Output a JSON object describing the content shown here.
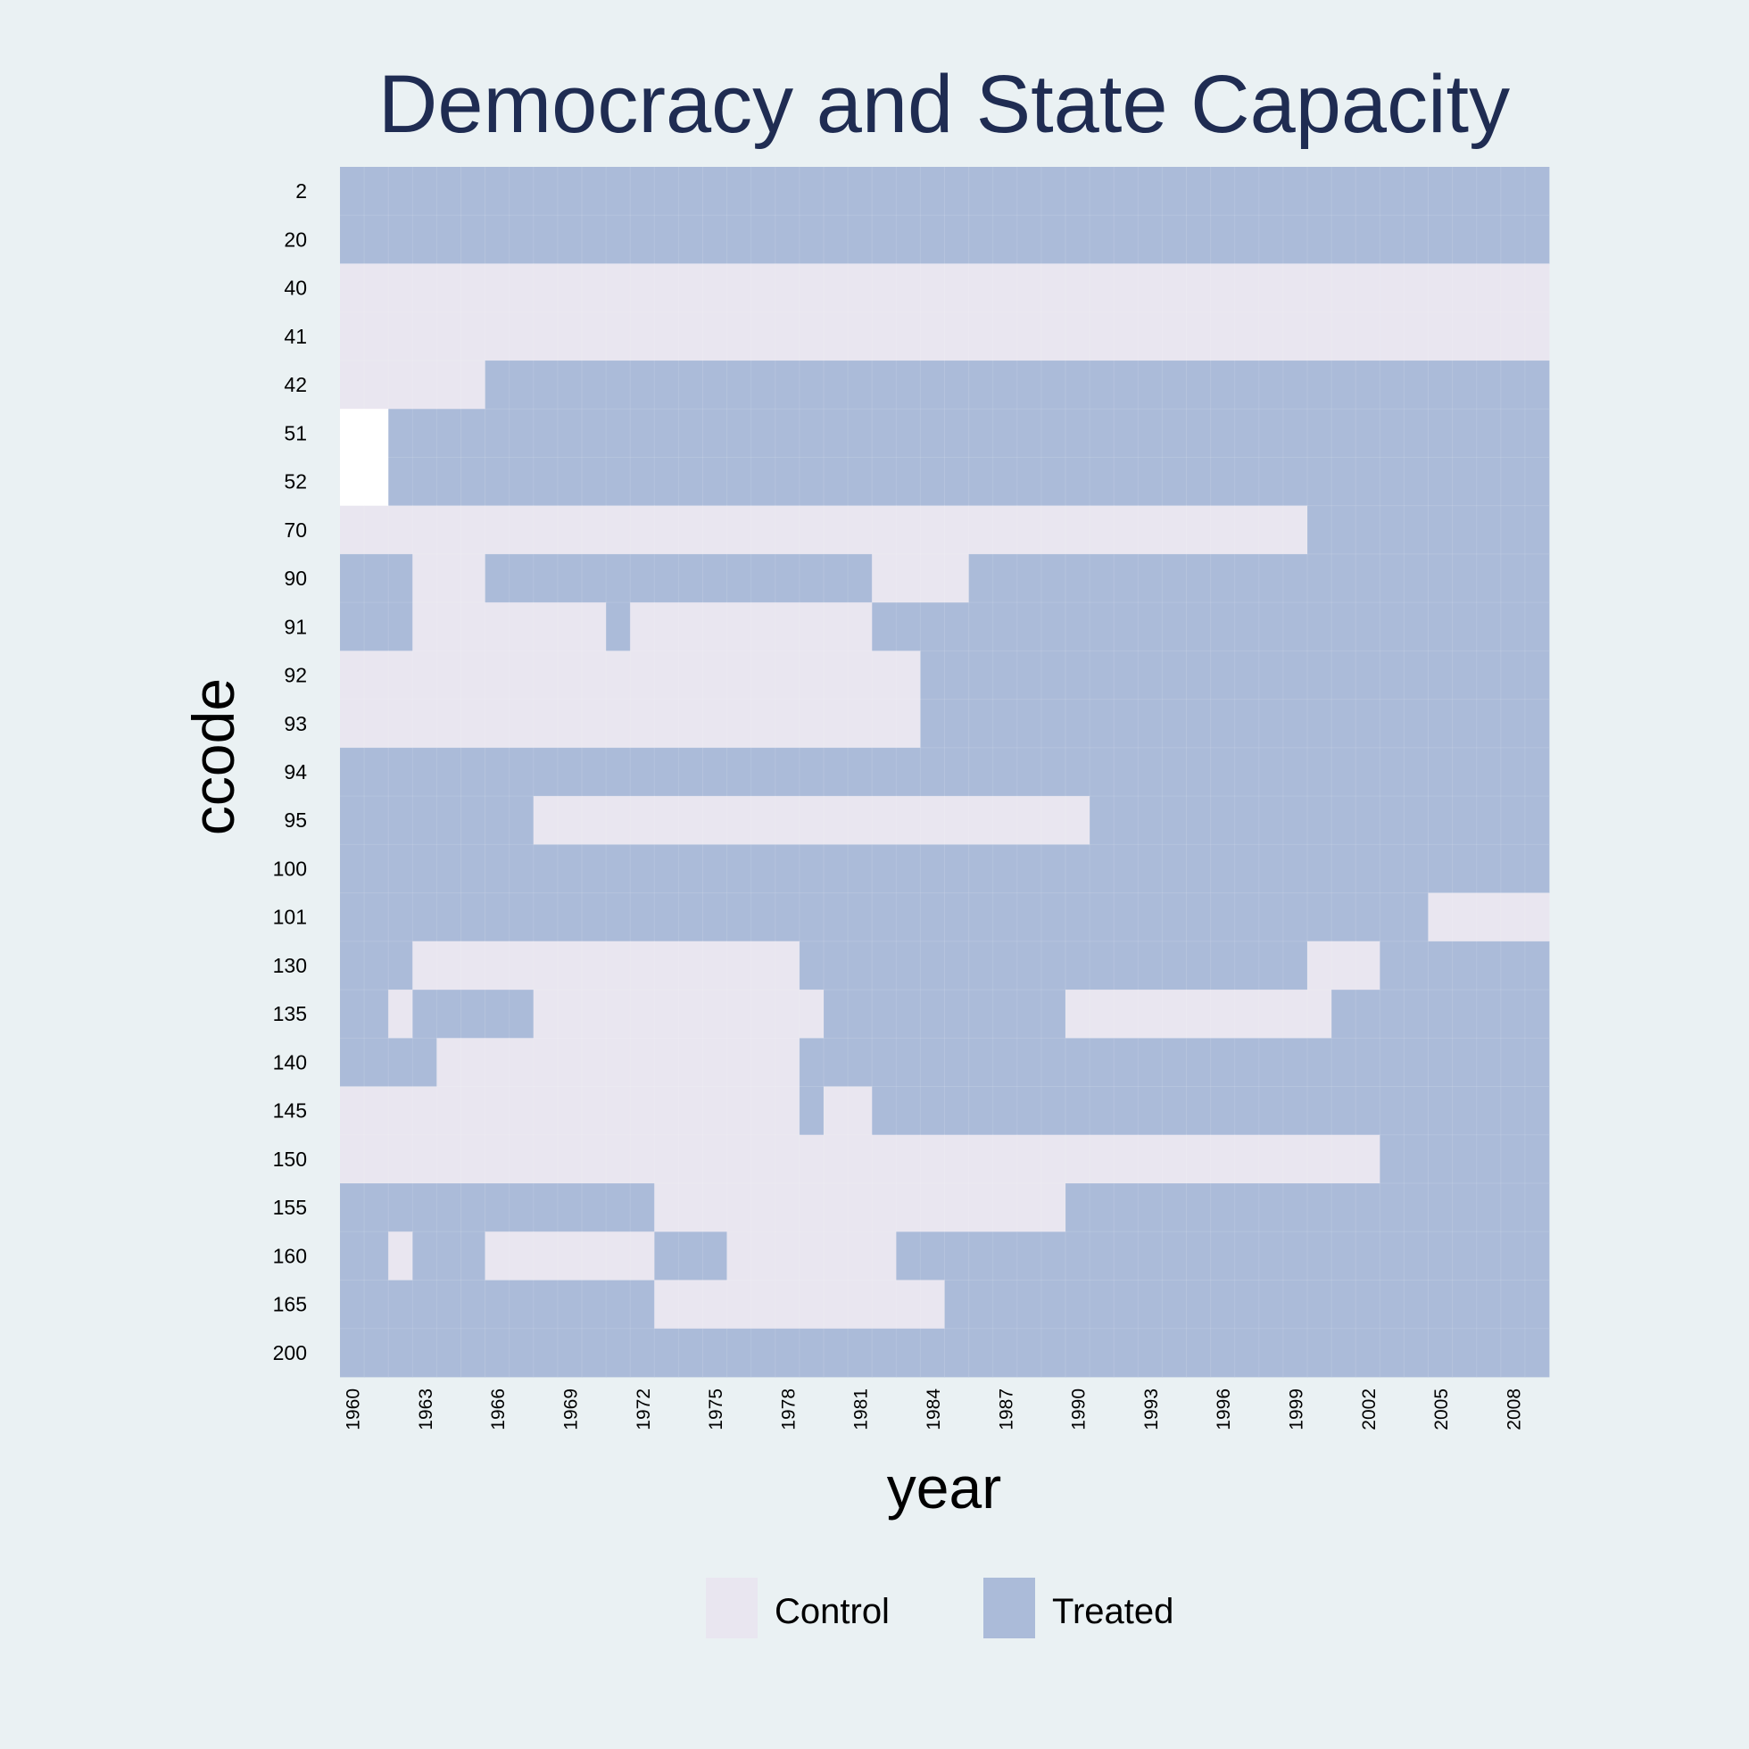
{
  "chart_data": {
    "type": "heatmap",
    "title": "Democracy and State Capacity",
    "xlabel": "year",
    "ylabel": "ccode",
    "years": [
      1960,
      1961,
      1962,
      1963,
      1964,
      1965,
      1966,
      1967,
      1968,
      1969,
      1970,
      1971,
      1972,
      1973,
      1974,
      1975,
      1976,
      1977,
      1978,
      1979,
      1980,
      1981,
      1982,
      1983,
      1984,
      1985,
      1986,
      1987,
      1988,
      1989,
      1990,
      1991,
      1992,
      1993,
      1994,
      1995,
      1996,
      1997,
      1998,
      1999,
      2000,
      2001,
      2002,
      2003,
      2004,
      2005,
      2006,
      2007,
      2008,
      2009
    ],
    "x_tick_labels": [
      "1960",
      "1963",
      "1966",
      "1969",
      "1972",
      "1975",
      "1978",
      "1981",
      "1984",
      "1987",
      "1990",
      "1993",
      "1996",
      "1999",
      "2002",
      "2005",
      "2008"
    ],
    "ccodes": [
      "2",
      "20",
      "40",
      "41",
      "42",
      "51",
      "52",
      "70",
      "90",
      "91",
      "92",
      "93",
      "94",
      "95",
      "100",
      "101",
      "130",
      "135",
      "140",
      "145",
      "150",
      "155",
      "160",
      "165",
      "200"
    ],
    "status_codes": {
      "0": "Missing",
      "1": "Control",
      "2": "Treated"
    },
    "colors": {
      "background": "#eaf1f3",
      "control": "#e9e6f0",
      "treated": "#abbbd9",
      "missing": "#ffffff",
      "title": "#1f2c52",
      "text": "#000000"
    },
    "runs": [
      [
        [
          2,
          50
        ]
      ],
      [
        [
          2,
          50
        ]
      ],
      [
        [
          1,
          50
        ]
      ],
      [
        [
          1,
          50
        ]
      ],
      [
        [
          1,
          6
        ],
        [
          2,
          44
        ]
      ],
      [
        [
          0,
          2
        ],
        [
          2,
          48
        ]
      ],
      [
        [
          0,
          2
        ],
        [
          2,
          48
        ]
      ],
      [
        [
          1,
          40
        ],
        [
          2,
          10
        ]
      ],
      [
        [
          2,
          3
        ],
        [
          1,
          3
        ],
        [
          2,
          16
        ],
        [
          1,
          4
        ],
        [
          2,
          24
        ]
      ],
      [
        [
          2,
          3
        ],
        [
          1,
          8
        ],
        [
          2,
          1
        ],
        [
          1,
          10
        ],
        [
          2,
          28
        ]
      ],
      [
        [
          1,
          24
        ],
        [
          2,
          26
        ]
      ],
      [
        [
          1,
          24
        ],
        [
          2,
          26
        ]
      ],
      [
        [
          2,
          50
        ]
      ],
      [
        [
          2,
          8
        ],
        [
          1,
          23
        ],
        [
          2,
          19
        ]
      ],
      [
        [
          2,
          50
        ]
      ],
      [
        [
          2,
          45
        ],
        [
          1,
          5
        ]
      ],
      [
        [
          2,
          3
        ],
        [
          1,
          16
        ],
        [
          2,
          21
        ],
        [
          1,
          3
        ],
        [
          2,
          7
        ]
      ],
      [
        [
          2,
          2
        ],
        [
          1,
          1
        ],
        [
          2,
          5
        ],
        [
          1,
          12
        ],
        [
          2,
          10
        ],
        [
          1,
          11
        ],
        [
          2,
          9
        ]
      ],
      [
        [
          2,
          4
        ],
        [
          1,
          15
        ],
        [
          2,
          31
        ]
      ],
      [
        [
          1,
          19
        ],
        [
          2,
          1
        ],
        [
          1,
          2
        ],
        [
          2,
          28
        ]
      ],
      [
        [
          1,
          43
        ],
        [
          2,
          7
        ]
      ],
      [
        [
          2,
          13
        ],
        [
          1,
          17
        ],
        [
          2,
          20
        ]
      ],
      [
        [
          2,
          2
        ],
        [
          1,
          1
        ],
        [
          2,
          3
        ],
        [
          1,
          7
        ],
        [
          2,
          3
        ],
        [
          1,
          7
        ],
        [
          2,
          27
        ]
      ],
      [
        [
          2,
          13
        ],
        [
          1,
          12
        ],
        [
          2,
          25
        ]
      ],
      [
        [
          2,
          50
        ]
      ]
    ],
    "legend": [
      {
        "key": "control",
        "label": "Control"
      },
      {
        "key": "treated",
        "label": "Treated"
      }
    ],
    "legend_position": "bottom"
  }
}
